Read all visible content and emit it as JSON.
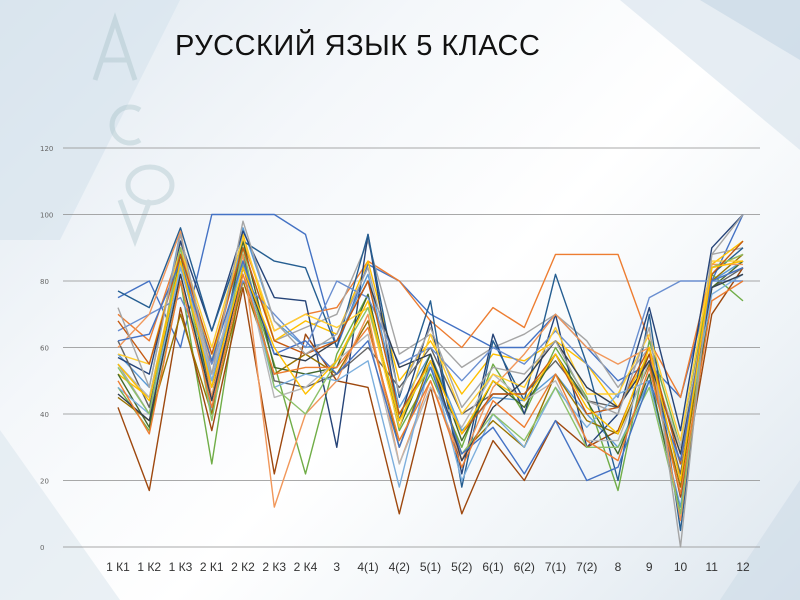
{
  "slide": {
    "title": "РУССКИЙ ЯЗЫК 5 КЛАСС"
  },
  "colors": {
    "gridline": "#8c8c8c",
    "palette": [
      "#4472c4",
      "#ed7d31",
      "#a5a5a5",
      "#ffc000",
      "#5b9bd5",
      "#70ad47",
      "#264478",
      "#9e480e",
      "#636363",
      "#997300",
      "#255e91",
      "#43682b",
      "#698ed0",
      "#f1975a",
      "#b7b7b7",
      "#ffcd33",
      "#7cafdd",
      "#8cc168",
      "#333f50",
      "#c55a11"
    ]
  },
  "chart_data": {
    "type": "line",
    "title": "",
    "xlabel": "",
    "ylabel": "",
    "ylim": [
      0,
      120
    ],
    "yticks": [
      0,
      20,
      40,
      60,
      80,
      100,
      120
    ],
    "grid": true,
    "legend": "none",
    "categories": [
      "1 К1",
      "1 К2",
      "1 К3",
      "2 К1",
      "2 К2",
      "2 К3",
      "2 К4",
      "3",
      "4(1)",
      "4(2)",
      "5(1)",
      "5(2)",
      "6(1)",
      "6(2)",
      "7(1)",
      "7(2)",
      "8",
      "9",
      "10",
      "11",
      "12"
    ],
    "series": [
      {
        "values": [
          75,
          80,
          60,
          100,
          100,
          100,
          94,
          60,
          85,
          80,
          70,
          65,
          60,
          60,
          70,
          60,
          50,
          55,
          45,
          80,
          100
        ]
      },
      {
        "values": [
          70,
          62,
          90,
          55,
          92,
          65,
          70,
          72,
          86,
          80,
          68,
          60,
          72,
          66,
          88,
          88,
          88,
          62,
          45,
          84,
          88
        ]
      },
      {
        "values": [
          55,
          40,
          92,
          50,
          90,
          62,
          66,
          70,
          92,
          58,
          64,
          54,
          60,
          64,
          70,
          62,
          48,
          60,
          20,
          88,
          90
        ]
      },
      {
        "values": [
          52,
          45,
          88,
          56,
          94,
          62,
          68,
          64,
          86,
          50,
          62,
          46,
          58,
          56,
          62,
          55,
          42,
          58,
          28,
          85,
          92
        ]
      },
      {
        "values": [
          58,
          48,
          95,
          40,
          96,
          68,
          60,
          62,
          82,
          42,
          58,
          35,
          45,
          44,
          52,
          40,
          30,
          50,
          12,
          80,
          86
        ]
      },
      {
        "values": [
          48,
          35,
          80,
          25,
          85,
          55,
          22,
          58,
          76,
          35,
          52,
          30,
          55,
          40,
          60,
          45,
          17,
          62,
          30,
          82,
          74
        ]
      },
      {
        "values": [
          57,
          52,
          92,
          65,
          95,
          75,
          74,
          30,
          94,
          38,
          68,
          22,
          64,
          40,
          70,
          30,
          40,
          72,
          35,
          90,
          100
        ]
      },
      {
        "values": [
          42,
          17,
          72,
          35,
          78,
          22,
          64,
          50,
          48,
          10,
          48,
          10,
          32,
          20,
          38,
          30,
          35,
          58,
          15,
          70,
          84
        ]
      },
      {
        "values": [
          62,
          42,
          85,
          48,
          88,
          50,
          48,
          52,
          60,
          48,
          60,
          40,
          46,
          46,
          56,
          44,
          42,
          56,
          22,
          78,
          84
        ]
      },
      {
        "values": [
          45,
          38,
          70,
          40,
          80,
          52,
          58,
          52,
          68,
          30,
          56,
          28,
          38,
          30,
          52,
          38,
          34,
          55,
          18,
          80,
          88
        ]
      },
      {
        "values": [
          77,
          72,
          96,
          65,
          92,
          86,
          84,
          60,
          94,
          45,
          74,
          18,
          62,
          44,
          82,
          55,
          20,
          70,
          5,
          82,
          90
        ]
      },
      {
        "values": [
          52,
          36,
          88,
          45,
          92,
          54,
          52,
          54,
          76,
          36,
          58,
          32,
          50,
          42,
          58,
          44,
          28,
          52,
          10,
          78,
          86
        ]
      },
      {
        "values": [
          65,
          70,
          75,
          55,
          80,
          70,
          60,
          80,
          75,
          55,
          60,
          50,
          60,
          55,
          65,
          55,
          45,
          75,
          80,
          80,
          80
        ]
      },
      {
        "values": [
          60,
          70,
          95,
          45,
          88,
          12,
          40,
          50,
          70,
          25,
          50,
          26,
          48,
          58,
          70,
          60,
          55,
          60,
          8,
          85,
          85
        ]
      },
      {
        "values": [
          55,
          45,
          85,
          52,
          86,
          45,
          48,
          56,
          64,
          25,
          48,
          36,
          52,
          44,
          50,
          32,
          32,
          56,
          30,
          80,
          84
        ]
      },
      {
        "values": [
          58,
          55,
          90,
          60,
          93,
          65,
          70,
          66,
          72,
          36,
          64,
          40,
          52,
          48,
          66,
          46,
          46,
          64,
          32,
          86,
          86
        ]
      },
      {
        "values": [
          48,
          40,
          84,
          50,
          86,
          48,
          52,
          50,
          56,
          18,
          56,
          20,
          40,
          30,
          48,
          36,
          46,
          50,
          25,
          76,
          82
        ]
      },
      {
        "values": [
          54,
          40,
          90,
          38,
          90,
          48,
          40,
          56,
          72,
          40,
          54,
          28,
          40,
          32,
          48,
          30,
          30,
          48,
          10,
          84,
          88
        ]
      },
      {
        "values": [
          46,
          38,
          82,
          44,
          84,
          58,
          56,
          62,
          80,
          54,
          58,
          26,
          42,
          50,
          62,
          48,
          42,
          56,
          28,
          78,
          82
        ]
      },
      {
        "values": [
          68,
          55,
          88,
          58,
          90,
          62,
          58,
          62,
          80,
          40,
          56,
          34,
          46,
          46,
          58,
          40,
          42,
          60,
          25,
          82,
          92
        ]
      },
      {
        "values": [
          62,
          64,
          86,
          56,
          86,
          58,
          62,
          52,
          62,
          30,
          54,
          28,
          36,
          22,
          38,
          20,
          24,
          50,
          26,
          80,
          84
        ]
      },
      {
        "values": [
          50,
          34,
          80,
          42,
          82,
          52,
          54,
          54,
          66,
          32,
          50,
          24,
          44,
          36,
          52,
          32,
          26,
          54,
          16,
          74,
          80
        ]
      },
      {
        "values": [
          72,
          48,
          94,
          52,
          98,
          68,
          58,
          64,
          84,
          46,
          66,
          42,
          54,
          52,
          62,
          44,
          40,
          66,
          0,
          88,
          100
        ]
      },
      {
        "values": [
          55,
          44,
          86,
          48,
          84,
          60,
          46,
          56,
          74,
          38,
          56,
          34,
          50,
          44,
          58,
          42,
          34,
          60,
          20,
          84,
          86
        ]
      }
    ]
  }
}
